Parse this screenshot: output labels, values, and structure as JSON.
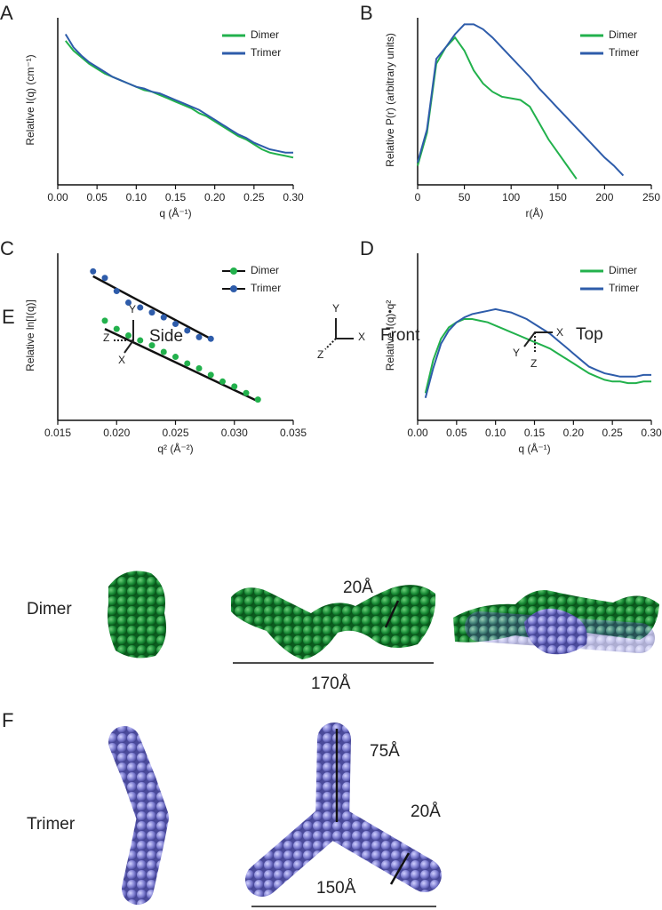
{
  "chart_data": [
    {
      "type": "line",
      "panel_label": "A",
      "xlabel": "q (Å⁻¹)",
      "ylabel": "Relative I(q) (cm⁻¹)",
      "legend": "upper right",
      "x": [
        0.01,
        0.02,
        0.03,
        0.04,
        0.05,
        0.06,
        0.07,
        0.08,
        0.09,
        0.1,
        0.11,
        0.12,
        0.13,
        0.14,
        0.15,
        0.16,
        0.17,
        0.18,
        0.19,
        0.2,
        0.21,
        0.22,
        0.23,
        0.24,
        0.25,
        0.26,
        0.27,
        0.28,
        0.29,
        0.3
      ],
      "series": [
        {
          "name": "Dimer",
          "color": "#22b14c",
          "values": [
            86,
            80,
            76,
            72,
            69,
            66,
            64,
            62,
            60,
            58,
            56,
            55,
            53,
            51,
            49,
            47,
            45,
            42,
            40,
            37,
            34,
            31,
            28,
            26,
            23,
            20,
            18,
            17,
            16,
            15
          ]
        },
        {
          "name": "Trimer",
          "color": "#2e5caa",
          "values": [
            90,
            82,
            77,
            73,
            70,
            67,
            64,
            62,
            60,
            58,
            57,
            55,
            54,
            52,
            50,
            48,
            46,
            44,
            41,
            38,
            35,
            32,
            29,
            27,
            24,
            22,
            20,
            19,
            18,
            18
          ]
        }
      ],
      "xlim": [
        0,
        0.3
      ],
      "xticks": [
        {
          "value": 0,
          "label": "0.00"
        },
        0.05,
        {
          "value": 0.1,
          "label": "0.10"
        },
        0.15,
        {
          "value": 0.2,
          "label": "0.20"
        },
        0.25,
        {
          "value": 0.3,
          "label": "0.30"
        }
      ],
      "ylim": [
        0,
        100
      ]
    },
    {
      "type": "line",
      "panel_label": "B",
      "xlabel": "r(Å)",
      "ylabel": "Relative P(r) (arbitrary units)",
      "legend": "upper right",
      "x": [
        0,
        10,
        20,
        30,
        40,
        50,
        60,
        70,
        80,
        90,
        100,
        110,
        120,
        130,
        140,
        150,
        160,
        170,
        180,
        190,
        200,
        210,
        220
      ],
      "series": [
        {
          "name": "Dimer",
          "color": "#22b14c",
          "values": [
            10,
            30,
            72,
            82,
            88,
            80,
            68,
            60,
            55,
            52,
            51,
            50,
            46,
            36,
            26,
            18,
            10,
            2,
            null,
            null,
            null,
            null,
            null
          ]
        },
        {
          "name": "Trimer",
          "color": "#2e5caa",
          "values": [
            12,
            32,
            75,
            82,
            90,
            96,
            96,
            93,
            88,
            82,
            76,
            70,
            64,
            57,
            51,
            45,
            39,
            33,
            27,
            21,
            15,
            10,
            4
          ]
        }
      ],
      "xlim": [
        0,
        250
      ],
      "xticks": [
        0,
        50,
        100,
        150,
        200,
        250
      ],
      "ylim": [
        0,
        100
      ]
    },
    {
      "type": "scatter",
      "panel_label": "C",
      "xlabel": "q² (Å⁻²)",
      "ylabel": "Relative ln[I(q)]",
      "legend": "upper right",
      "series": [
        {
          "name": "Dimer",
          "color": "#22b14c",
          "x": [
            0.019,
            0.02,
            0.021,
            0.022,
            0.023,
            0.024,
            0.025,
            0.026,
            0.027,
            0.028,
            0.029,
            0.03,
            0.031,
            0.032
          ],
          "values": [
            59,
            54,
            50,
            47,
            44,
            40,
            37,
            33,
            30,
            26,
            22,
            19,
            15,
            11
          ],
          "fit": {
            "x": [
              0.019,
              0.032
            ],
            "values": [
              54,
              10
            ]
          }
        },
        {
          "name": "Trimer",
          "color": "#2e5caa",
          "x": [
            0.018,
            0.019,
            0.02,
            0.021,
            0.022,
            0.023,
            0.024,
            0.025,
            0.026,
            0.027,
            0.028
          ],
          "values": [
            89,
            85,
            77,
            70,
            67,
            64,
            61,
            57,
            53,
            49,
            48
          ],
          "fit": {
            "x": [
              0.018,
              0.028
            ],
            "values": [
              86,
              48
            ]
          }
        }
      ],
      "xlim": [
        0.015,
        0.035
      ],
      "xticks": [
        0.015,
        {
          "value": 0.02,
          "label": "0.020"
        },
        0.025,
        {
          "value": 0.03,
          "label": "0.030"
        },
        0.035
      ],
      "ylim": [
        0,
        100
      ]
    },
    {
      "type": "line",
      "panel_label": "D",
      "xlabel": "q (Å⁻¹)",
      "ylabel": "Relative I(q)•q²",
      "legend": "upper right",
      "x": [
        0.01,
        0.02,
        0.03,
        0.04,
        0.05,
        0.06,
        0.07,
        0.08,
        0.09,
        0.1,
        0.11,
        0.12,
        0.13,
        0.14,
        0.15,
        0.16,
        0.17,
        0.18,
        0.19,
        0.2,
        0.21,
        0.22,
        0.23,
        0.24,
        0.25,
        0.26,
        0.27,
        0.28,
        0.29,
        0.3
      ],
      "series": [
        {
          "name": "Dimer",
          "color": "#22b14c",
          "values": [
            15,
            35,
            48,
            55,
            58,
            60,
            60,
            59,
            58,
            56,
            54,
            52,
            50,
            48,
            46,
            44,
            42,
            39,
            36,
            33,
            30,
            27,
            25,
            23,
            22,
            22,
            21,
            21,
            22,
            22
          ]
        },
        {
          "name": "Trimer",
          "color": "#2e5caa",
          "values": [
            12,
            30,
            45,
            53,
            58,
            61,
            63,
            64,
            65,
            66,
            65,
            64,
            62,
            60,
            57,
            54,
            51,
            47,
            43,
            39,
            35,
            31,
            29,
            27,
            26,
            25,
            25,
            25,
            26,
            26
          ]
        }
      ],
      "xlim": [
        0,
        0.3
      ],
      "xticks": [
        {
          "value": 0,
          "label": "0.00"
        },
        0.05,
        {
          "value": 0.1,
          "label": "0.10"
        },
        0.15,
        {
          "value": 0.2,
          "label": "0.20"
        },
        0.25,
        {
          "value": 0.3,
          "label": "0.30"
        }
      ],
      "ylim": [
        0,
        100
      ]
    }
  ],
  "panels": {
    "E": {
      "label": "E",
      "row_label": "Dimer",
      "dimensions": [
        "20Å",
        "170Å"
      ],
      "views": [
        {
          "title": "Side",
          "axes": [
            "Y",
            "Z",
            "X"
          ]
        },
        {
          "title": "Front",
          "axes": [
            "Y",
            "X",
            "Z"
          ]
        },
        {
          "title": "Top",
          "axes": [
            "Y",
            "X",
            "Z"
          ]
        }
      ]
    },
    "F": {
      "label": "F",
      "row_label": "Trimer",
      "dimensions": [
        "75Å",
        "20Å",
        "150Å"
      ]
    }
  }
}
